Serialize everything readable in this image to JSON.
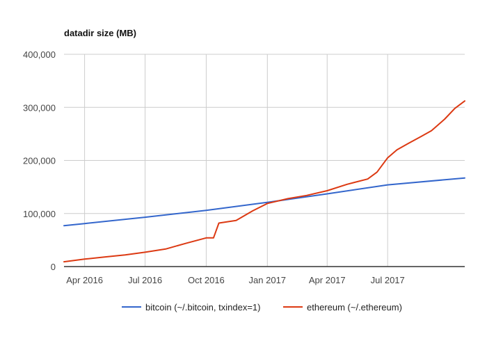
{
  "chart_data": {
    "type": "line",
    "title": "datadir size (MB)",
    "xlabel": "",
    "ylabel": "",
    "x_range": [
      "2016-03-01",
      "2017-10-25"
    ],
    "ylim": [
      0,
      400000
    ],
    "y_ticks": [
      0,
      100000,
      200000,
      300000,
      400000
    ],
    "y_tick_labels": [
      "0",
      "100,000",
      "200,000",
      "300,000",
      "400,000"
    ],
    "x_ticks": [
      "2016-04-01",
      "2016-07-01",
      "2016-10-01",
      "2017-01-01",
      "2017-04-01",
      "2017-07-01"
    ],
    "x_tick_labels": [
      "Apr 2016",
      "Jul 2016",
      "Oct 2016",
      "Jan 2017",
      "Apr 2017",
      "Jul 2017"
    ],
    "grid": true,
    "legend_position": "bottom",
    "series": [
      {
        "name": "bitcoin (~/.bitcoin, txindex=1)",
        "color": "#3366cc",
        "points": [
          [
            "2016-03-01",
            77000
          ],
          [
            "2016-04-01",
            81000
          ],
          [
            "2016-07-01",
            93000
          ],
          [
            "2016-10-01",
            106000
          ],
          [
            "2017-01-01",
            121000
          ],
          [
            "2017-04-01",
            137000
          ],
          [
            "2017-07-01",
            154000
          ],
          [
            "2017-10-25",
            167000
          ]
        ]
      },
      {
        "name": "ethereum (~/.ethereum)",
        "color": "#dc3912",
        "points": [
          [
            "2016-03-01",
            9000
          ],
          [
            "2016-04-01",
            14000
          ],
          [
            "2016-05-01",
            18000
          ],
          [
            "2016-06-01",
            22000
          ],
          [
            "2016-07-01",
            27000
          ],
          [
            "2016-08-01",
            33000
          ],
          [
            "2016-09-01",
            44000
          ],
          [
            "2016-10-01",
            54000
          ],
          [
            "2016-10-12",
            54000
          ],
          [
            "2016-10-20",
            82000
          ],
          [
            "2016-11-15",
            87000
          ],
          [
            "2016-12-10",
            105000
          ],
          [
            "2017-01-01",
            119000
          ],
          [
            "2017-02-01",
            128000
          ],
          [
            "2017-03-01",
            134000
          ],
          [
            "2017-04-01",
            143000
          ],
          [
            "2017-05-01",
            155000
          ],
          [
            "2017-06-01",
            165000
          ],
          [
            "2017-06-15",
            178000
          ],
          [
            "2017-07-01",
            205000
          ],
          [
            "2017-07-15",
            220000
          ],
          [
            "2017-08-01",
            232000
          ],
          [
            "2017-08-20",
            245000
          ],
          [
            "2017-09-05",
            256000
          ],
          [
            "2017-09-25",
            278000
          ],
          [
            "2017-10-10",
            298000
          ],
          [
            "2017-10-25",
            312000
          ]
        ]
      }
    ]
  }
}
